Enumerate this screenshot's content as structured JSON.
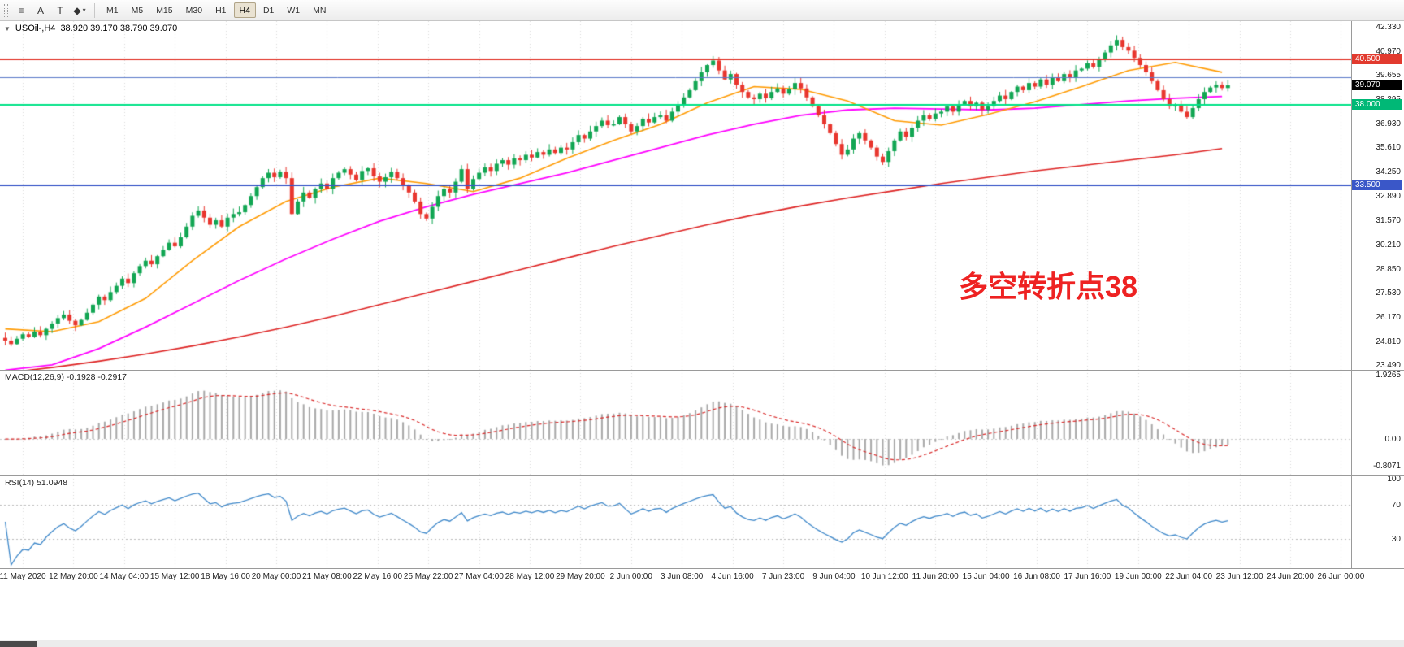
{
  "icons": {
    "expander": "▼",
    "caret": "▾"
  },
  "toolbar": {
    "tools": [
      {
        "name": "line-studies",
        "glyph": "≡"
      },
      {
        "name": "text-tool",
        "glyph": "A"
      },
      {
        "name": "arrow-tool",
        "glyph": "T"
      },
      {
        "name": "shapes-tool",
        "glyph": "◆"
      }
    ],
    "timeframes": [
      {
        "label": "M1"
      },
      {
        "label": "M5"
      },
      {
        "label": "M15"
      },
      {
        "label": "M30"
      },
      {
        "label": "H1"
      },
      {
        "label": "H4",
        "selected": true
      },
      {
        "label": "D1"
      },
      {
        "label": "W1"
      },
      {
        "label": "MN"
      }
    ]
  },
  "chart": {
    "symbol_title": "USOil-,H4",
    "ohlc_text": "38.920 39.170 38.790 39.070",
    "annotation": "多空转折点38",
    "macd_label": "MACD(12,26,9) -0.1928 -0.2917",
    "rsi_label": "RSI(14) 51.0948",
    "price_axis": [
      "42.330",
      "40.970",
      "39.655",
      "38.295",
      "36.930",
      "35.610",
      "34.250",
      "32.890",
      "31.570",
      "30.210",
      "28.850",
      "27.530",
      "26.170",
      "24.810",
      "23.490"
    ],
    "macd_axis": [
      "1.9265",
      "0.00",
      "-0.8071"
    ],
    "rsi_axis": [
      "100",
      "70",
      "30"
    ],
    "badges": [
      {
        "value": "40.500",
        "price": 40.5,
        "color": "#e23a2e"
      },
      {
        "value": "39.070",
        "price": 39.07,
        "color": "#000000"
      },
      {
        "value": "38.000",
        "price": 38.0,
        "color": "#00b876"
      },
      {
        "value": "33.500",
        "price": 33.5,
        "color": "#3a57c8"
      }
    ],
    "hlines": [
      {
        "price": 40.5,
        "color": "#e23a2e",
        "width": 2
      },
      {
        "price": 39.5,
        "color": "#5a78c8",
        "width": 1
      },
      {
        "price": 38.0,
        "color": "#00e287",
        "width": 2
      },
      {
        "price": 33.5,
        "color": "#3a57c8",
        "width": 2
      }
    ],
    "time_axis": [
      "11 May 2020",
      "12 May 20:00",
      "14 May 04:00",
      "15 May 12:00",
      "18 May 16:00",
      "20 May 00:00",
      "21 May 08:00",
      "22 May 16:00",
      "25 May 22:00",
      "27 May 04:00",
      "28 May 12:00",
      "29 May 20:00",
      "2 Jun 00:00",
      "3 Jun 08:00",
      "4 Jun 16:00",
      "7 Jun 23:00",
      "9 Jun 04:00",
      "10 Jun 12:00",
      "11 Jun 20:00",
      "15 Jun 04:00",
      "16 Jun 08:00",
      "17 Jun 16:00",
      "19 Jun 00:00",
      "22 Jun 04:00",
      "23 Jun 12:00",
      "24 Jun 20:00",
      "26 Jun 00:00"
    ]
  },
  "chart_data": {
    "type": "candlestick",
    "symbol": "USOil-",
    "timeframe": "H4",
    "price_range": [
      23.49,
      42.33
    ],
    "open_first": 25.0,
    "closes": [
      24.85,
      24.65,
      24.95,
      25.2,
      25.05,
      25.35,
      25.15,
      25.5,
      25.8,
      26.1,
      26.3,
      25.95,
      25.7,
      26.0,
      26.4,
      26.85,
      27.3,
      27.1,
      27.55,
      27.9,
      28.3,
      28.05,
      28.6,
      29.0,
      29.3,
      29.1,
      29.55,
      29.9,
      30.3,
      30.1,
      30.6,
      31.2,
      31.8,
      32.1,
      31.7,
      31.3,
      31.55,
      31.2,
      31.7,
      31.9,
      32.0,
      32.4,
      32.9,
      33.4,
      33.9,
      34.2,
      33.95,
      34.25,
      33.9,
      31.9,
      32.6,
      33.1,
      32.8,
      33.3,
      33.6,
      33.3,
      33.9,
      34.2,
      34.4,
      34.1,
      33.8,
      34.3,
      34.45,
      34.0,
      33.7,
      33.95,
      34.25,
      33.9,
      33.5,
      33.1,
      32.6,
      31.9,
      31.65,
      32.3,
      32.9,
      33.3,
      33.1,
      33.7,
      34.4,
      33.3,
      33.85,
      34.2,
      34.5,
      34.3,
      34.7,
      34.9,
      34.65,
      35.0,
      34.9,
      35.2,
      35.05,
      35.35,
      35.2,
      35.5,
      35.3,
      35.6,
      35.5,
      35.9,
      36.3,
      36.1,
      36.5,
      36.8,
      37.1,
      36.85,
      36.9,
      37.3,
      36.9,
      36.5,
      36.8,
      37.2,
      37.0,
      37.3,
      37.4,
      37.1,
      37.6,
      38.0,
      38.4,
      38.8,
      39.3,
      39.8,
      40.2,
      40.45,
      39.9,
      39.4,
      39.7,
      39.1,
      38.7,
      38.4,
      38.3,
      38.6,
      38.35,
      38.7,
      38.9,
      38.6,
      38.85,
      39.2,
      38.9,
      38.4,
      37.9,
      37.4,
      36.9,
      36.4,
      35.8,
      35.2,
      35.5,
      36.1,
      36.4,
      36.0,
      35.6,
      35.1,
      34.8,
      35.4,
      36.0,
      36.5,
      36.2,
      36.7,
      37.1,
      37.4,
      37.2,
      37.5,
      37.6,
      37.9,
      37.6,
      38.0,
      38.2,
      37.9,
      38.1,
      37.7,
      37.9,
      38.2,
      38.5,
      38.3,
      38.7,
      39.0,
      38.8,
      39.2,
      39.0,
      39.4,
      39.1,
      39.5,
      39.3,
      39.7,
      39.5,
      39.9,
      40.0,
      40.3,
      40.1,
      40.5,
      40.9,
      41.3,
      41.6,
      41.2,
      41.0,
      40.6,
      40.2,
      39.8,
      39.3,
      38.8,
      38.3,
      37.9,
      38.0,
      37.6,
      37.3,
      37.8,
      38.3,
      38.7,
      38.95,
      39.1,
      38.92,
      39.07
    ],
    "ma_step": 8,
    "ma_red": [
      23.05,
      23.35,
      23.7,
      24.1,
      24.55,
      25.05,
      25.6,
      26.2,
      26.85,
      27.5,
      28.15,
      28.8,
      29.45,
      30.1,
      30.7,
      31.3,
      31.85,
      32.35,
      32.8,
      33.2,
      33.6,
      33.95,
      34.3,
      34.6,
      34.9,
      35.2,
      35.55
    ],
    "ma_magenta": [
      23.2,
      23.5,
      24.4,
      25.6,
      26.9,
      28.2,
      29.4,
      30.5,
      31.5,
      32.3,
      33.0,
      33.6,
      34.2,
      34.9,
      35.6,
      36.3,
      36.9,
      37.4,
      37.7,
      37.8,
      37.75,
      37.7,
      37.8,
      38.0,
      38.2,
      38.35,
      38.45
    ],
    "ma_orange": [
      25.5,
      25.35,
      25.9,
      27.2,
      29.3,
      31.2,
      32.6,
      33.4,
      33.9,
      33.6,
      33.15,
      33.9,
      35.0,
      36.0,
      36.9,
      38.1,
      39.0,
      38.85,
      38.2,
      37.1,
      36.85,
      37.45,
      38.15,
      39.0,
      39.9,
      40.35,
      39.8
    ],
    "macd": {
      "params": "12,26,9",
      "value": -0.1928,
      "signal_value": -0.2917,
      "scale_max": 1.9265,
      "scale_min": -0.95
    },
    "rsi": {
      "params": "14",
      "value": 51.0948,
      "levels": [
        70,
        30
      ],
      "scale": [
        0,
        100
      ]
    },
    "colors": {
      "up": "#12a653",
      "down": "#e8362e",
      "ma_red": "#dd2222",
      "ma_magenta": "#ff00ff",
      "ma_orange": "#ff9a00",
      "macd_bars": "#a8a8a8",
      "macd_signal": "#d92a2a",
      "rsi_line": "#3d87c9"
    }
  }
}
